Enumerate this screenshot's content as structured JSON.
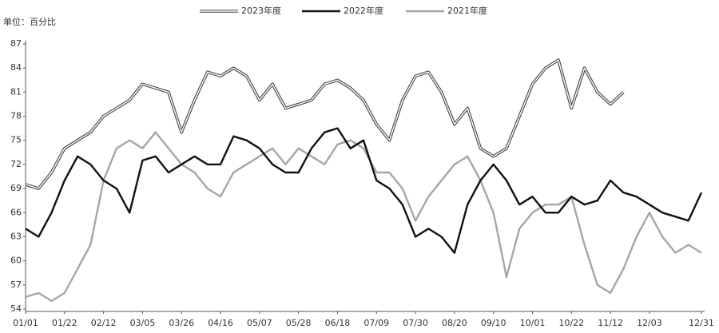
{
  "chart_data": {
    "type": "line",
    "y_label": "单位：百分比",
    "x": [
      0,
      7,
      14,
      21,
      28,
      35,
      42,
      49,
      56,
      63,
      70,
      77,
      84,
      91,
      98,
      105,
      112,
      119,
      126,
      133,
      140,
      147,
      154,
      161,
      168,
      175,
      182,
      189,
      196,
      203,
      210,
      217,
      224,
      231,
      238,
      245,
      252,
      259,
      266,
      273,
      280,
      287,
      294,
      301,
      308,
      315,
      322,
      329,
      336,
      343,
      350,
      357,
      364
    ],
    "xlim": [
      0,
      364
    ],
    "xticks": [
      {
        "value": 0,
        "label": "01/01"
      },
      {
        "value": 21,
        "label": "01/22"
      },
      {
        "value": 42,
        "label": "02/12"
      },
      {
        "value": 63,
        "label": "03/05"
      },
      {
        "value": 84,
        "label": "03/26"
      },
      {
        "value": 105,
        "label": "04/16"
      },
      {
        "value": 126,
        "label": "05/07"
      },
      {
        "value": 147,
        "label": "05/28"
      },
      {
        "value": 168,
        "label": "06/18"
      },
      {
        "value": 189,
        "label": "07/09"
      },
      {
        "value": 210,
        "label": "07/30"
      },
      {
        "value": 231,
        "label": "08/20"
      },
      {
        "value": 252,
        "label": "09/10"
      },
      {
        "value": 273,
        "label": "10/01"
      },
      {
        "value": 294,
        "label": "10/22"
      },
      {
        "value": 315,
        "label": "11/12"
      },
      {
        "value": 336,
        "label": "12/03"
      },
      {
        "value": 364,
        "label": "12/31"
      }
    ],
    "ylim": [
      54,
      87
    ],
    "yticks": [
      54,
      57,
      60,
      63,
      66,
      69,
      72,
      75,
      78,
      81,
      84,
      87
    ],
    "grid": false,
    "series": [
      {
        "name": "2023年度",
        "color": "#444444",
        "line_style": "double",
        "values": [
          69.5,
          69,
          71,
          74,
          75,
          76,
          78,
          79,
          80,
          82,
          81.5,
          81,
          76,
          80,
          83.5,
          83,
          84,
          83,
          80,
          82,
          79,
          79.5,
          80,
          82,
          82.5,
          81.5,
          80,
          77,
          75,
          80,
          83,
          83.5,
          81,
          77,
          79,
          74,
          73,
          74,
          78,
          82,
          84,
          85,
          79,
          84,
          81,
          79.5,
          81,
          null,
          null,
          null,
          null,
          null,
          null
        ]
      },
      {
        "name": "2022年度",
        "color": "#111111",
        "line_style": "solid",
        "values": [
          64,
          63,
          66,
          70,
          73,
          72,
          70,
          69,
          66,
          72.5,
          73,
          71,
          72,
          73,
          72,
          72,
          75.5,
          75,
          74,
          72,
          71,
          71,
          74,
          76,
          76.5,
          74,
          75,
          70,
          69,
          67,
          63,
          64,
          63,
          61,
          67,
          70,
          72,
          70,
          67,
          68,
          66,
          66,
          68,
          67,
          67.5,
          70,
          68.5,
          68,
          67,
          66,
          65.5,
          65,
          68.5
        ]
      },
      {
        "name": "2021年度",
        "color": "#a6a6a6",
        "line_style": "solid",
        "values": [
          55.5,
          56,
          55,
          56,
          59,
          62,
          70,
          74,
          75,
          74,
          76,
          74,
          72,
          71,
          69,
          68,
          71,
          72,
          73,
          74,
          72,
          74,
          73,
          72,
          74.5,
          75,
          74,
          71,
          71,
          69,
          65,
          68,
          70,
          72,
          73,
          70,
          66,
          58,
          64,
          66,
          67,
          67,
          68,
          62,
          57,
          56,
          59,
          63,
          66,
          63,
          61,
          62,
          61
        ]
      }
    ]
  }
}
